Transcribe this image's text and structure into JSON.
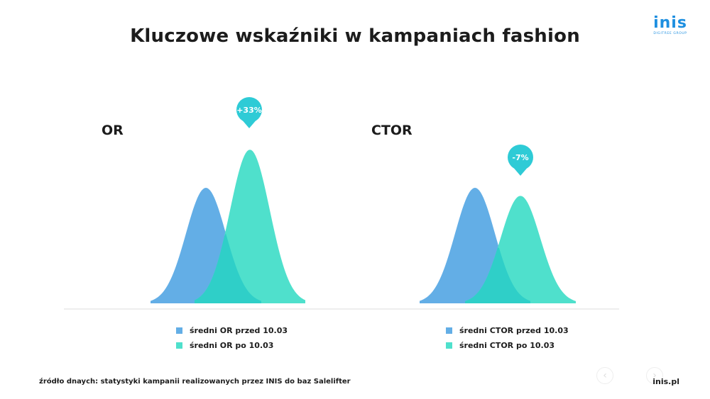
{
  "page": {
    "title": "Kluczowe wskaźniki w kampaniach fashion",
    "logo": {
      "mark": "inis",
      "sub": "DIGITREE GROUP"
    },
    "source": "źródło dnaych: statystyki kampanii realizowanych przez INIS do baz Salelifter",
    "site": "inis.pl",
    "nav": {
      "prev_icon": "chevron-left-icon",
      "next_icon": "chevron-right-icon",
      "prev_glyph": "‹",
      "next_glyph": "›"
    }
  },
  "colors": {
    "before": "#63aee6",
    "after": "#4fe0cc",
    "overlap": "#2fcfc8",
    "badge": "#2ecbd6",
    "baseline": "#eeeeee"
  },
  "chart_data": [
    {
      "type": "area",
      "title": "OR",
      "series": [
        {
          "name": "średni OR przed 10.03",
          "peak": 1.0,
          "color": "#63aee6"
        },
        {
          "name": "średni OR po 10.03",
          "peak": 1.33,
          "color": "#4fe0cc"
        }
      ],
      "annotation": "+33%",
      "legend": "bottom"
    },
    {
      "type": "area",
      "title": "CTOR",
      "series": [
        {
          "name": "średni CTOR przed 10.03",
          "peak": 1.0,
          "color": "#63aee6"
        },
        {
          "name": "średni CTOR po 10.03",
          "peak": 0.93,
          "color": "#4fe0cc"
        }
      ],
      "annotation": "-7%",
      "legend": "bottom"
    }
  ]
}
